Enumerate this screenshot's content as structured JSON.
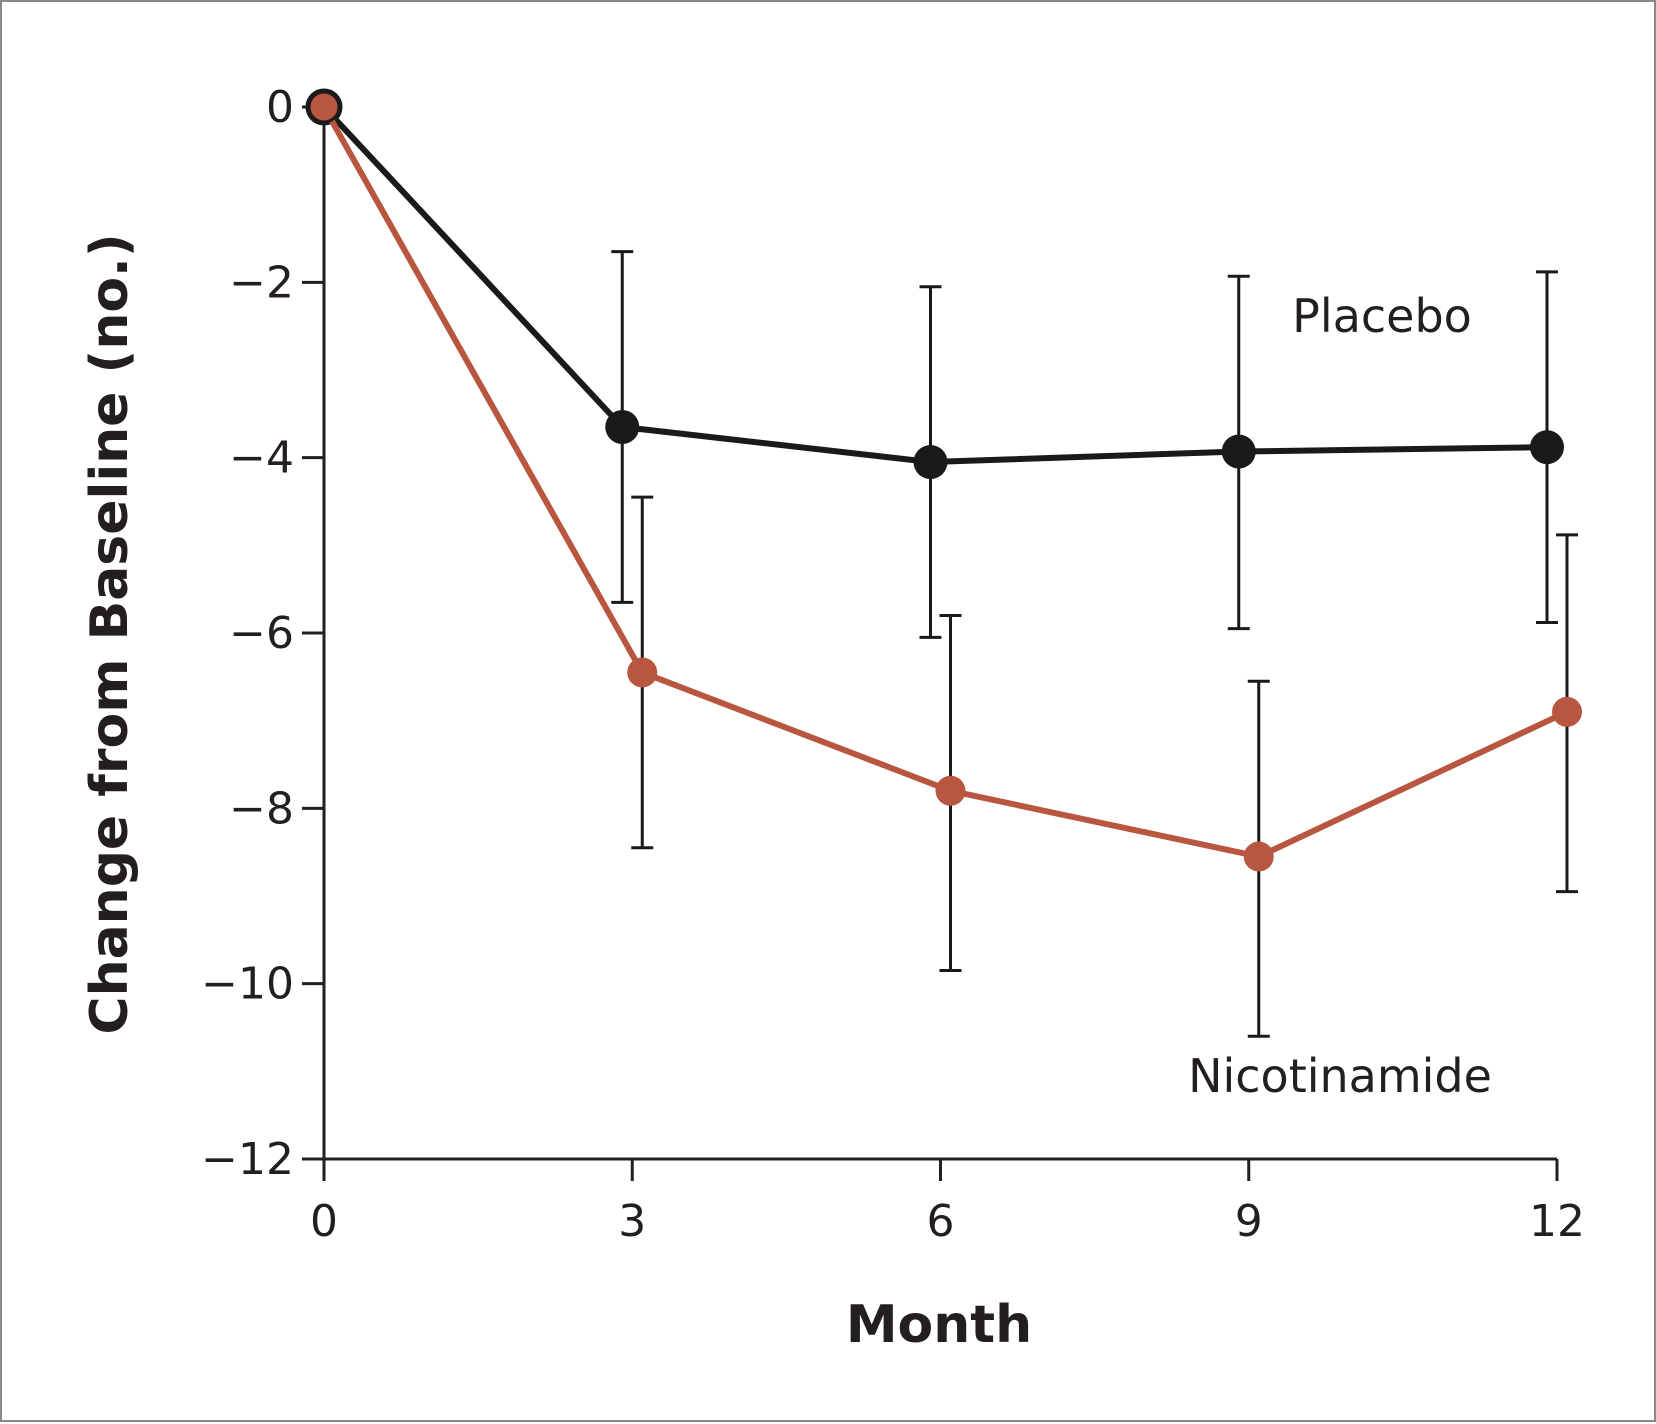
{
  "chart_data": {
    "type": "line",
    "title": "",
    "xlabel": "Month",
    "ylabel": "Change from Baseline (no.)",
    "x": [
      0,
      3,
      6,
      9,
      12
    ],
    "x_ticks": [
      "0",
      "3",
      "6",
      "9",
      "12"
    ],
    "y_ticks": [
      "0",
      "−2",
      "−4",
      "−6",
      "−8",
      "−10",
      "−12"
    ],
    "y_tick_values": [
      0,
      -2,
      -4,
      -6,
      -8,
      -10,
      -12
    ],
    "xlim": [
      0,
      12
    ],
    "ylim": [
      -12,
      0
    ],
    "grid": false,
    "error_bars": true,
    "series": [
      {
        "name": "Placebo",
        "color": "#1a1a1a",
        "values": [
          0,
          -3.65,
          -4.05,
          -3.93,
          -3.88
        ],
        "upper": [
          null,
          -1.65,
          -2.05,
          -1.93,
          -1.88
        ],
        "lower": [
          null,
          -5.65,
          -6.05,
          -5.95,
          -5.88
        ]
      },
      {
        "name": "Nicotinamide",
        "color": "#b85640",
        "values": [
          0,
          -6.45,
          -7.8,
          -8.55,
          -6.9
        ],
        "upper": [
          null,
          -4.45,
          -5.8,
          -6.55,
          -4.88
        ],
        "lower": [
          null,
          -8.45,
          -9.85,
          -10.6,
          -8.95
        ]
      }
    ],
    "axis_color": "#231f20"
  }
}
